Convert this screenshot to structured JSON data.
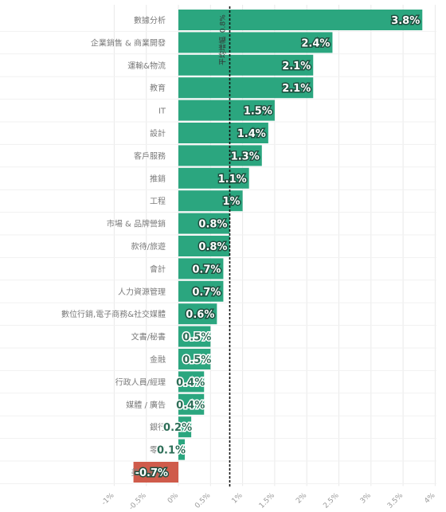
{
  "chart_data": {
    "type": "bar",
    "orientation": "horizontal",
    "categories": [
      "數據分析",
      "企業銷售 & 商業開發",
      "運輸&物流",
      "教育",
      "IT",
      "設計",
      "客戶服務",
      "推銷",
      "工程",
      "市場 & 品牌營銷",
      "款待/旅遊",
      "會計",
      "人力資源管理",
      "數位行銷,電子商務&社交媒體",
      "文書/秘書",
      "金融",
      "行政人員/經理",
      "媒體 / 廣告",
      "銀行",
      "零售",
      "美容/健康"
    ],
    "values": [
      3.8,
      2.4,
      2.1,
      2.1,
      1.5,
      1.4,
      1.3,
      1.1,
      1.0,
      0.8,
      0.8,
      0.7,
      0.7,
      0.6,
      0.5,
      0.5,
      0.4,
      0.4,
      0.2,
      0.1,
      -0.7
    ],
    "value_labels": [
      "3.8%",
      "2.4%",
      "2.1%",
      "2.1%",
      "1.5%",
      "1.4%",
      "1.3%",
      "1.1%",
      "1%",
      "0.8%",
      "0.8%",
      "0.7%",
      "0.7%",
      "0.6%",
      "0.5%",
      "0.5%",
      "0.4%",
      "0.4%",
      "0.2%",
      "0.1%",
      "-0.7%"
    ],
    "xlim": [
      -1,
      4
    ],
    "xticks": [
      -1,
      -0.5,
      0,
      0.5,
      1,
      1.5,
      2,
      2.5,
      3,
      3.5,
      4
    ],
    "xtick_labels": [
      "-1%",
      "-0.5%",
      "0%",
      "0.5%",
      "1%",
      "1.5%",
      "2%",
      "2.5%",
      "3%",
      "3.5%",
      "4%"
    ],
    "average": {
      "value": 0.8,
      "label": "平均增幅",
      "value_label": "0.8%"
    },
    "colors": {
      "positive": "#2ba67f",
      "negative": "#cf5b4b",
      "grid": "#e9e9e9",
      "average_line": "#111111"
    },
    "grid": true
  }
}
